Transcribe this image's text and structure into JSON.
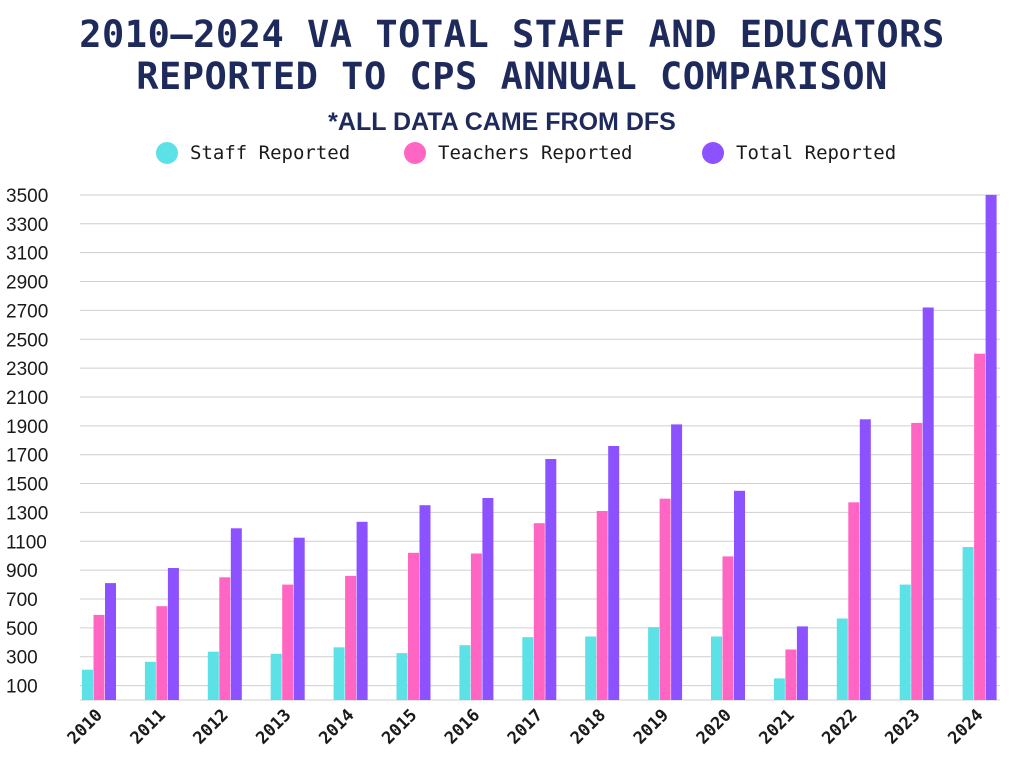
{
  "chart_data": {
    "type": "bar",
    "title_lines": [
      "2010–2024 VA TOTAL STAFF AND EDUCATORS",
      "REPORTED TO CPS ANNUAL COMPARISON"
    ],
    "subtitle": "*ALL DATA CAME FROM DFS",
    "categories": [
      "2010",
      "2011",
      "2012",
      "2013",
      "2014",
      "2015",
      "2016",
      "2017",
      "2018",
      "2019",
      "2020",
      "2021",
      "2022",
      "2023",
      "2024"
    ],
    "series": [
      {
        "name": "Staff Reported",
        "color": "#5ce1e6",
        "values": [
          210,
          265,
          335,
          320,
          365,
          325,
          380,
          435,
          440,
          505,
          440,
          150,
          565,
          800,
          1060
        ]
      },
      {
        "name": "Teachers Reported",
        "color": "#ff66c4",
        "values": [
          590,
          650,
          850,
          800,
          860,
          1020,
          1015,
          1225,
          1310,
          1395,
          995,
          350,
          1370,
          1920,
          2400
        ]
      },
      {
        "name": "Total Reported",
        "color": "#8c52ff",
        "values": [
          810,
          915,
          1190,
          1125,
          1235,
          1350,
          1400,
          1670,
          1760,
          1910,
          1450,
          510,
          1945,
          2720,
          3500
        ]
      }
    ],
    "yticks": [
      100,
      300,
      500,
      700,
      900,
      1100,
      1300,
      1500,
      1700,
      1900,
      2100,
      2300,
      2500,
      2700,
      2900,
      3100,
      3300,
      3500
    ],
    "ylim": [
      0,
      3500
    ],
    "grid": true,
    "legend_position": "top-center",
    "xlabel": "",
    "ylabel": ""
  }
}
